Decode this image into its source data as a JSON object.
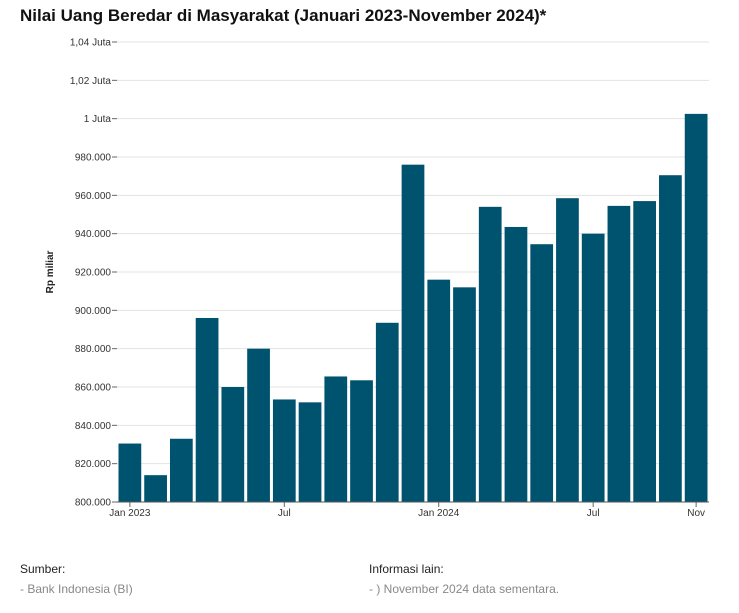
{
  "chart_data": {
    "type": "bar",
    "title": "Nilai Uang Beredar di Masyarakat (Januari 2023-November 2024)*",
    "xlabel": "",
    "ylabel": "Rp miliar",
    "ylim": [
      800000,
      1040000
    ],
    "yticks": [
      {
        "value": 800000,
        "label": "800.000"
      },
      {
        "value": 820000,
        "label": "820.000"
      },
      {
        "value": 840000,
        "label": "840.000"
      },
      {
        "value": 860000,
        "label": "860.000"
      },
      {
        "value": 880000,
        "label": "880.000"
      },
      {
        "value": 900000,
        "label": "900.000"
      },
      {
        "value": 920000,
        "label": "920.000"
      },
      {
        "value": 940000,
        "label": "940.000"
      },
      {
        "value": 960000,
        "label": "960.000"
      },
      {
        "value": 980000,
        "label": "980.000"
      },
      {
        "value": 1000000,
        "label": "1 Juta"
      },
      {
        "value": 1020000,
        "label": "1,02 Juta"
      },
      {
        "value": 1040000,
        "label": "1,04 Juta"
      }
    ],
    "xticks": [
      {
        "index": 0,
        "label": "Jan 2023"
      },
      {
        "index": 6,
        "label": "Jul"
      },
      {
        "index": 12,
        "label": "Jan 2024"
      },
      {
        "index": 18,
        "label": "Jul"
      },
      {
        "index": 22,
        "label": "Nov"
      }
    ],
    "categories": [
      "Jan 2023",
      "Feb 2023",
      "Mar 2023",
      "Apr 2023",
      "May 2023",
      "Jun 2023",
      "Jul 2023",
      "Aug 2023",
      "Sep 2023",
      "Oct 2023",
      "Nov 2023",
      "Dec 2023",
      "Jan 2024",
      "Feb 2024",
      "Mar 2024",
      "Apr 2024",
      "May 2024",
      "Jun 2024",
      "Jul 2024",
      "Aug 2024",
      "Sep 2024",
      "Oct 2024",
      "Nov 2024"
    ],
    "values": [
      830500,
      814000,
      833000,
      896000,
      860000,
      880000,
      853500,
      852000,
      865500,
      863500,
      893500,
      976000,
      916000,
      912000,
      954000,
      943500,
      934500,
      958500,
      940000,
      954500,
      957000,
      970500,
      1002500
    ],
    "grid": true,
    "bar_color": "#00536f"
  },
  "footer": {
    "source_heading": "Sumber:",
    "source_item": "- Bank Indonesia (BI)",
    "info_heading": "Informasi lain:",
    "info_item": "- ) November 2024 data sementara."
  }
}
